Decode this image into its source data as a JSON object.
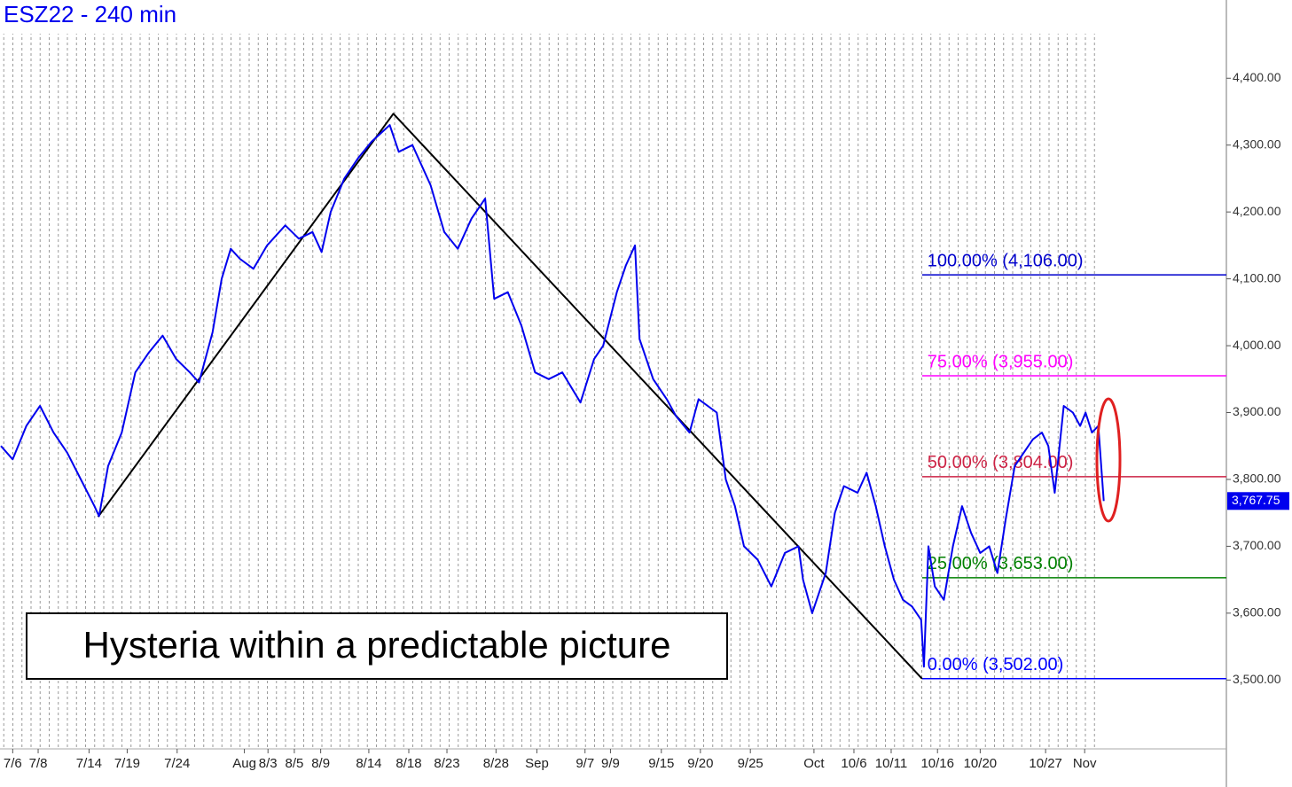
{
  "chart_data": {
    "type": "line",
    "title": "ESZ22 - 240 min",
    "annotation": "Hysteria within a predictable picture",
    "xlim": [
      -1.4,
      133.6
    ],
    "ylim": [
      3397,
      4517
    ],
    "grid": true,
    "yticks": [
      {
        "value": 3500,
        "label": "3,500.00"
      },
      {
        "value": 3600,
        "label": "3,600.00"
      },
      {
        "value": 3700,
        "label": "3,700.00"
      },
      {
        "value": 3800,
        "label": "3,800.00"
      },
      {
        "value": 3900,
        "label": "3,900.00"
      },
      {
        "value": 4000,
        "label": "4,000.00"
      },
      {
        "value": 4100,
        "label": "4,100.00"
      },
      {
        "value": 4200,
        "label": "4,200.00"
      },
      {
        "value": 4300,
        "label": "4,300.00"
      },
      {
        "value": 4400,
        "label": "4,400.00"
      }
    ],
    "xticks": [
      {
        "value": 0,
        "label": "7/6"
      },
      {
        "value": 2.8,
        "label": "7/8"
      },
      {
        "value": 8.4,
        "label": "7/14"
      },
      {
        "value": 12.6,
        "label": "7/19"
      },
      {
        "value": 18.1,
        "label": "7/24"
      },
      {
        "value": 25.5,
        "label": "Aug"
      },
      {
        "value": 28.1,
        "label": "8/3"
      },
      {
        "value": 31,
        "label": "8/5"
      },
      {
        "value": 33.9,
        "label": "8/9"
      },
      {
        "value": 39.2,
        "label": "8/14"
      },
      {
        "value": 43.6,
        "label": "8/18"
      },
      {
        "value": 47.8,
        "label": "8/23"
      },
      {
        "value": 53.2,
        "label": "8/28"
      },
      {
        "value": 57.7,
        "label": "Sep"
      },
      {
        "value": 63,
        "label": "9/7"
      },
      {
        "value": 65.8,
        "label": "9/9"
      },
      {
        "value": 71.4,
        "label": "9/15"
      },
      {
        "value": 75.7,
        "label": "9/20"
      },
      {
        "value": 81.2,
        "label": "9/25"
      },
      {
        "value": 88.2,
        "label": "Oct"
      },
      {
        "value": 92.6,
        "label": "10/6"
      },
      {
        "value": 96.7,
        "label": "10/11"
      },
      {
        "value": 101.8,
        "label": "10/16"
      },
      {
        "value": 106.5,
        "label": "10/20"
      },
      {
        "value": 113.7,
        "label": "10/27"
      },
      {
        "value": 118,
        "label": "Nov"
      }
    ],
    "series": [
      {
        "color": "#0000ee",
        "last_label": "3,767.75",
        "x": [
          -1.3,
          0,
          1.5,
          3,
          4.5,
          6,
          7.5,
          9,
          9.5,
          10.5,
          12,
          13.5,
          15,
          16.5,
          18,
          19.5,
          20.5,
          22,
          23,
          24,
          25,
          26.5,
          28,
          30,
          31.5,
          33,
          34,
          35,
          36.5,
          38,
          39.5,
          41.5,
          42.5,
          44,
          46,
          47.5,
          49,
          50.5,
          52,
          53,
          54.5,
          56,
          57.5,
          59,
          60.5,
          62.5,
          64,
          65,
          66.5,
          67.5,
          68.5,
          69,
          70.5,
          72,
          73,
          74.5,
          75.5,
          77.5,
          78.5,
          79.5,
          80.5,
          82,
          83.5,
          85,
          86.5,
          87,
          88,
          89.5,
          90.5,
          91.5,
          93,
          94,
          95,
          96,
          97,
          98,
          99,
          100,
          100.3,
          100.8,
          101.5,
          102.5,
          103.5,
          104.5,
          105.5,
          106.5,
          107.5,
          108.4,
          109.3,
          110.3,
          111.3,
          112.3,
          113.3,
          114,
          114.7,
          115.7,
          116.7,
          117.5,
          118.1,
          118.8,
          119.5,
          120.1
        ],
        "values": [
          3850,
          3830,
          3880,
          3910,
          3870,
          3840,
          3800,
          3760,
          3745,
          3820,
          3870,
          3960,
          3990,
          4015,
          3980,
          3960,
          3945,
          4020,
          4100,
          4145,
          4130,
          4115,
          4150,
          4180,
          4160,
          4170,
          4140,
          4200,
          4250,
          4280,
          4305,
          4330,
          4290,
          4300,
          4240,
          4170,
          4145,
          4190,
          4220,
          4070,
          4080,
          4030,
          3960,
          3950,
          3960,
          3915,
          3980,
          4000,
          4080,
          4120,
          4150,
          4010,
          3950,
          3920,
          3895,
          3870,
          3920,
          3900,
          3800,
          3760,
          3700,
          3680,
          3640,
          3690,
          3700,
          3650,
          3600,
          3660,
          3750,
          3790,
          3780,
          3810,
          3760,
          3700,
          3650,
          3620,
          3610,
          3590,
          3520,
          3700,
          3640,
          3620,
          3700,
          3760,
          3720,
          3690,
          3700,
          3660,
          3740,
          3820,
          3840,
          3860,
          3870,
          3850,
          3780,
          3910,
          3900,
          3880,
          3900,
          3870,
          3880,
          3767.75
        ]
      }
    ],
    "trendline": {
      "color": "#000000",
      "x": [
        9.4,
        41.9,
        100.1
      ],
      "values": [
        3744,
        4347,
        3502
      ]
    },
    "fib_levels": [
      {
        "value": 4106,
        "label": "100.00% (4,106.00)",
        "color": "#0000cc"
      },
      {
        "value": 3955,
        "label": "75.00% (3,955.00)",
        "color": "#ff00ff"
      },
      {
        "value": 3804,
        "label": "50.00% (3,804.00)",
        "color": "#cc2244"
      },
      {
        "value": 3653,
        "label": "25.00% (3,653.00)",
        "color": "#008000"
      },
      {
        "value": 3502,
        "label": "0.00% (3,502.00)",
        "color": "#0000ff"
      }
    ]
  }
}
